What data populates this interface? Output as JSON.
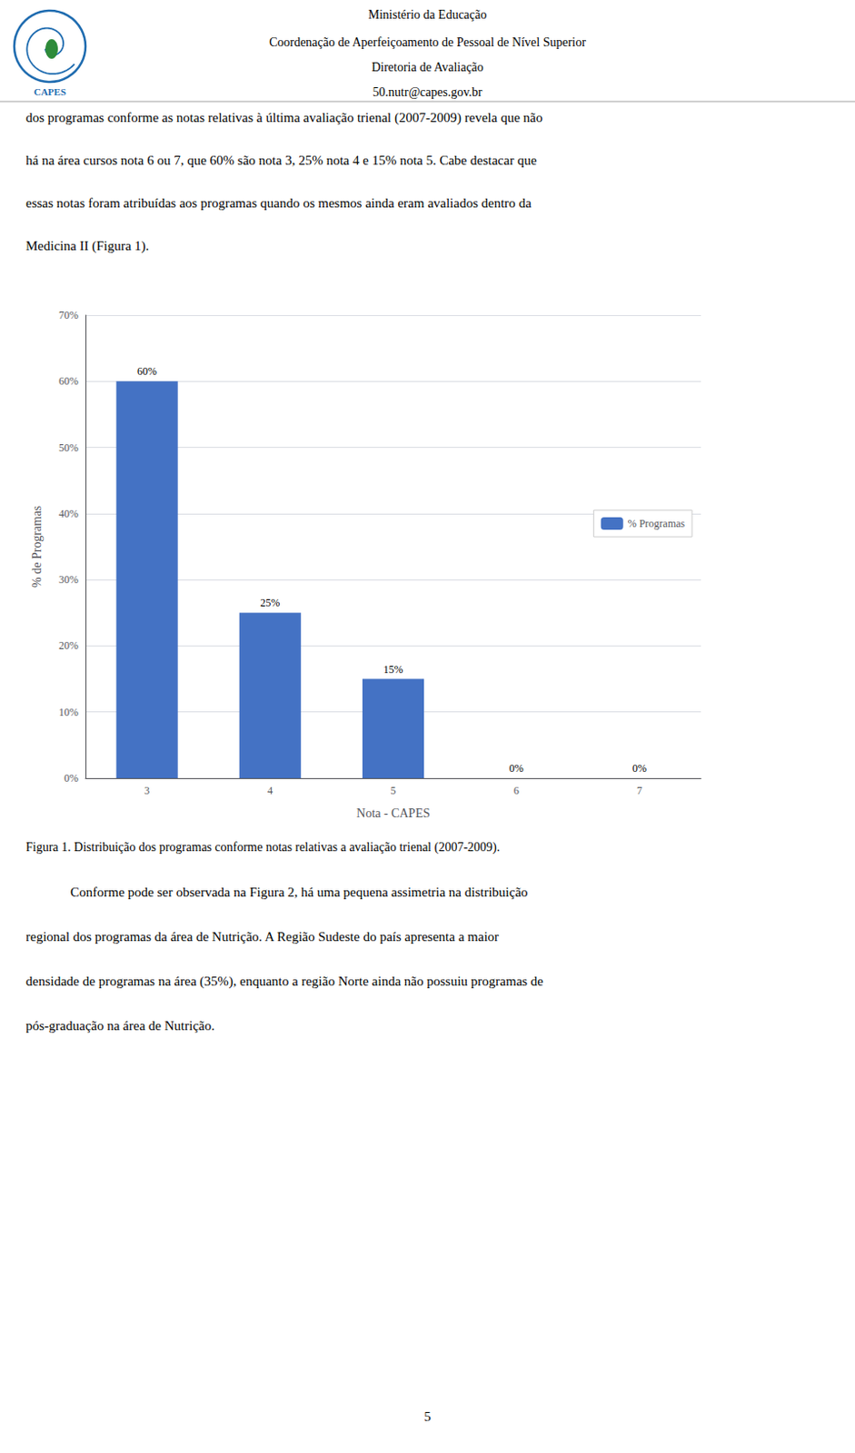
{
  "chart_data": {
    "type": "bar",
    "categories": [
      "3",
      "4",
      "5",
      "6",
      "7"
    ],
    "values": [
      60,
      25,
      15,
      0,
      0
    ],
    "value_labels": [
      "60%",
      "25%",
      "15%",
      "0%",
      "0%"
    ],
    "data_labels": true,
    "color": "#4472C4",
    "series": [
      {
        "name": "% Programas",
        "color": "#4472C4",
        "values": [
          60,
          25,
          15,
          0,
          0
        ]
      }
    ],
    "x_label": "Nota - CAPES",
    "y_label": "% de Programas",
    "ylim": [
      0,
      70
    ],
    "yticks": [
      {
        "value": 0,
        "label": "0%"
      },
      {
        "value": 10,
        "label": "10%"
      },
      {
        "value": 20,
        "label": "20%"
      },
      {
        "value": 30,
        "label": "30%"
      },
      {
        "value": 40,
        "label": "40%"
      },
      {
        "value": 50,
        "label": "50%"
      },
      {
        "value": 60,
        "label": "60%"
      },
      {
        "value": 70,
        "label": "70%"
      }
    ],
    "grid": true,
    "legend": "right",
    "annotations": [
      "Ministério da Educação",
      "Coordenação de Aperfeiçoamento de Pessoal de Nível Superior",
      "Diretoria de Avaliação",
      "50.nutr@capes.gov.br",
      "CAPES",
      "dos programas conforme as notas relativas à última avaliação trienal (2007-2009) revela que não",
      "há na área cursos nota 6 ou 7, que 60% são nota 3, 25% nota 4 e 15% nota 5. Cabe destacar que",
      "essas notas foram atribuídas aos programas quando os mesmos ainda eram avaliados dentro da",
      "Medicina II (Figura 1).",
      "Figura 1. Distribuição dos programas conforme notas relativas a avaliação trienal (2007-2009).",
      "Conforme pode ser observada na Figura 2, há uma pequena assimetria na distribuição",
      "regional dos programas da área de Nutrição. A Região Sudeste do país apresenta a maior",
      "densidade de programas na área (35%), enquanto a região Norte ainda não possuiu programas de",
      "pós-graduação na área de Nutrição.",
      "5"
    ]
  }
}
